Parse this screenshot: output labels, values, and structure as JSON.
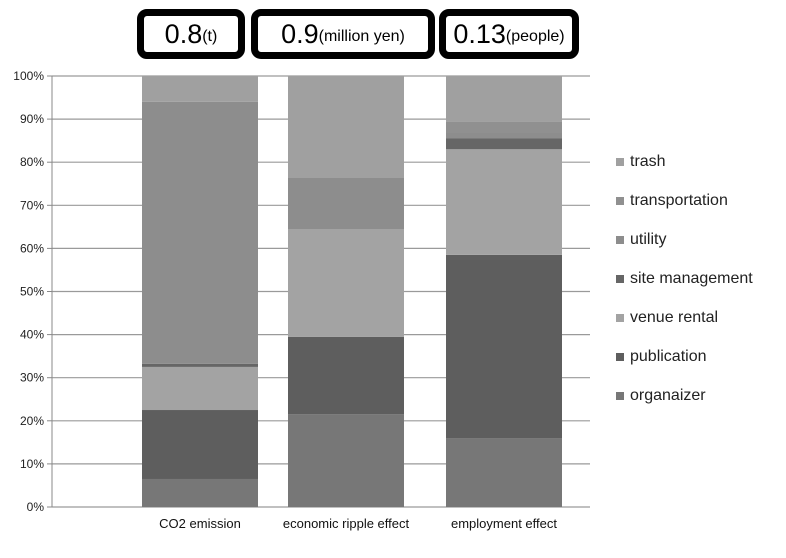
{
  "chart_data": {
    "type": "bar",
    "stacked": true,
    "normalized": true,
    "categories": [
      "CO2 emission",
      "economic ripple effect",
      "employment effect"
    ],
    "y_ticks": [
      "0%",
      "10%",
      "20%",
      "30%",
      "40%",
      "50%",
      "60%",
      "70%",
      "80%",
      "90%",
      "100%"
    ],
    "ylim": [
      0,
      100
    ],
    "grid": true,
    "legend_position": "right",
    "series": [
      {
        "name": "organaizer",
        "color": "#777777",
        "values": [
          6.5,
          21.5,
          16
        ]
      },
      {
        "name": "publication",
        "color": "#5e5e5e",
        "values": [
          16,
          18,
          42.5
        ]
      },
      {
        "name": "venue rental",
        "color": "#a3a3a3",
        "values": [
          10,
          25,
          24.5
        ]
      },
      {
        "name": "site management",
        "color": "#666666",
        "values": [
          0.7,
          0,
          2.5
        ]
      },
      {
        "name": "utility",
        "color": "#8d8d8d",
        "values": [
          60.8,
          12,
          1.5
        ]
      },
      {
        "name": "transportation",
        "color": "#909090",
        "values": [
          0,
          0,
          2.5
        ]
      },
      {
        "name": "trash",
        "color": "#a0a0a0",
        "values": [
          6,
          23.5,
          10.5
        ]
      }
    ],
    "annotations": [
      {
        "value": "0.8",
        "unit": "(t)"
      },
      {
        "value": "0.9",
        "unit": "(million yen)"
      },
      {
        "value": "0.13",
        "unit": "(people)"
      }
    ]
  }
}
